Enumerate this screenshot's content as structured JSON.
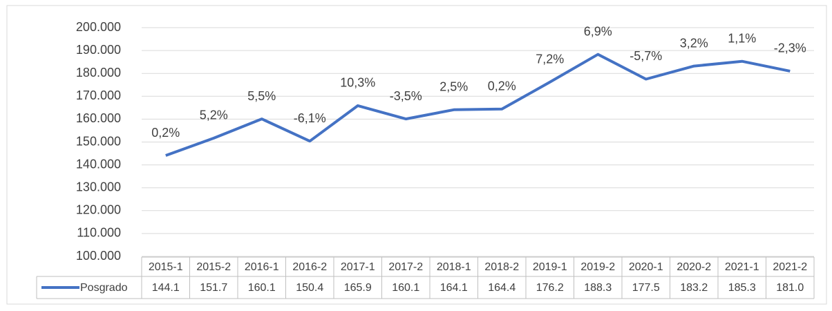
{
  "chart_data": {
    "type": "line",
    "categories": [
      "2015-1",
      "2015-2",
      "2016-1",
      "2016-2",
      "2017-1",
      "2017-2",
      "2018-1",
      "2018-2",
      "2019-1",
      "2019-2",
      "2020-1",
      "2020-2",
      "2021-1",
      "2021-2"
    ],
    "series": [
      {
        "name": "Posgrado",
        "color": "#4472c4",
        "values": [
          144.1,
          151.7,
          160.1,
          150.4,
          165.9,
          160.1,
          164.1,
          164.4,
          176.2,
          188.3,
          177.5,
          183.2,
          185.3,
          181.0
        ],
        "value_labels": [
          "144.1",
          "151.7",
          "160.1",
          "150.4",
          "165.9",
          "160.1",
          "164.1",
          "164.4",
          "176.2",
          "188.3",
          "177.5",
          "183.2",
          "185.3",
          "181.0"
        ]
      }
    ],
    "annotations": [
      "0,2%",
      "5,2%",
      "5,5%",
      "-6,1%",
      "10,3%",
      "-3,5%",
      "2,5%",
      "0,2%",
      "7,2%",
      "6,9%",
      "-5,7%",
      "3,2%",
      "1,1%",
      "-2,3%"
    ],
    "ylim": [
      100,
      200
    ],
    "yticks": [
      {
        "value": 100,
        "label": "100.000"
      },
      {
        "value": 110,
        "label": "110.000"
      },
      {
        "value": 120,
        "label": "120.000"
      },
      {
        "value": 130,
        "label": "130.000"
      },
      {
        "value": 140,
        "label": "140.000"
      },
      {
        "value": 150,
        "label": "150.000"
      },
      {
        "value": 160,
        "label": "160.000"
      },
      {
        "value": 170,
        "label": "170.000"
      },
      {
        "value": 180,
        "label": "180.000"
      },
      {
        "value": 190,
        "label": "190.000"
      },
      {
        "value": 200,
        "label": "200.000"
      }
    ],
    "grid": true
  }
}
